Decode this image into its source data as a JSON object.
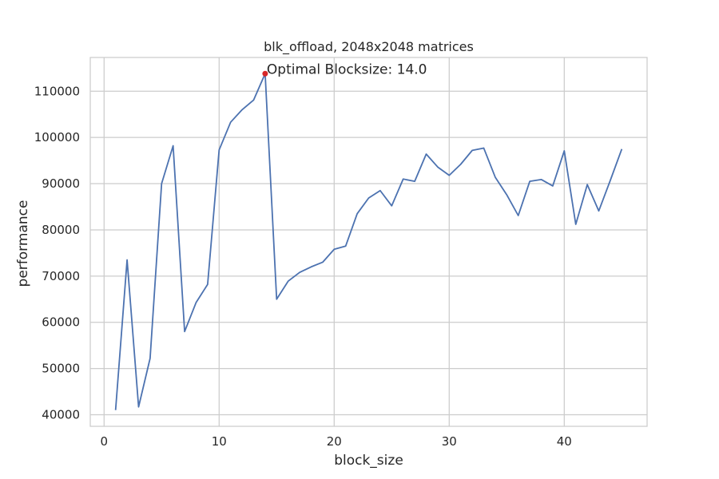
{
  "chart_data": {
    "type": "line",
    "title": "blk_offload, 2048x2048 matrices",
    "xlabel": "block_size",
    "ylabel": "performance",
    "xlim": [
      -1.2,
      47.2
    ],
    "ylim": [
      37500,
      117300
    ],
    "xticks": [
      0,
      10,
      20,
      30,
      40
    ],
    "yticks": [
      40000,
      50000,
      60000,
      70000,
      80000,
      90000,
      100000,
      110000
    ],
    "grid": true,
    "line_color": "#4c72b0",
    "series": [
      {
        "x": [
          1,
          2,
          3,
          4,
          5,
          6,
          7,
          8,
          9,
          10,
          11,
          12,
          13,
          14,
          15,
          16,
          17,
          18,
          19,
          20,
          21,
          22,
          23,
          24,
          25,
          26,
          27,
          28,
          29,
          30,
          31,
          32,
          33,
          34,
          35,
          36,
          37,
          38,
          39,
          40,
          41,
          42,
          43,
          44,
          45
        ],
        "values": [
          41000,
          73500,
          41700,
          52200,
          90000,
          98200,
          58000,
          64300,
          68200,
          97300,
          103300,
          106000,
          108100,
          113800,
          65000,
          68900,
          70800,
          72000,
          73000,
          75800,
          76500,
          83500,
          86900,
          88500,
          85200,
          91000,
          90500,
          96400,
          93600,
          91800,
          94200,
          97200,
          97700,
          91400,
          87600,
          83100,
          90500,
          90900,
          89500,
          97100,
          81200,
          89800,
          84100,
          90700,
          97500
        ]
      }
    ],
    "annotation": {
      "text": "Optimal Blocksize: 14.0",
      "x": 14,
      "y": 113800,
      "marker_color": "#d62728"
    }
  }
}
